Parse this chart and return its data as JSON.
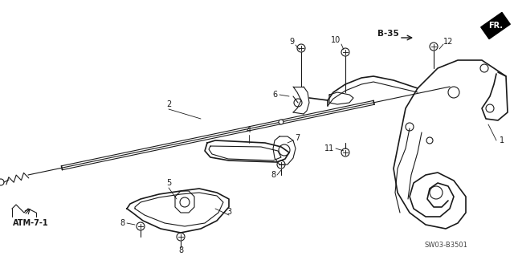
{
  "bg_color": "#ffffff",
  "line_color": "#1a1a1a",
  "fig_width": 6.4,
  "fig_height": 3.19,
  "dpi": 100,
  "part_number": "SW03-B3501",
  "ref_label": "FR.",
  "ref_link": "B-35",
  "atm_label": "ATM-7-1"
}
